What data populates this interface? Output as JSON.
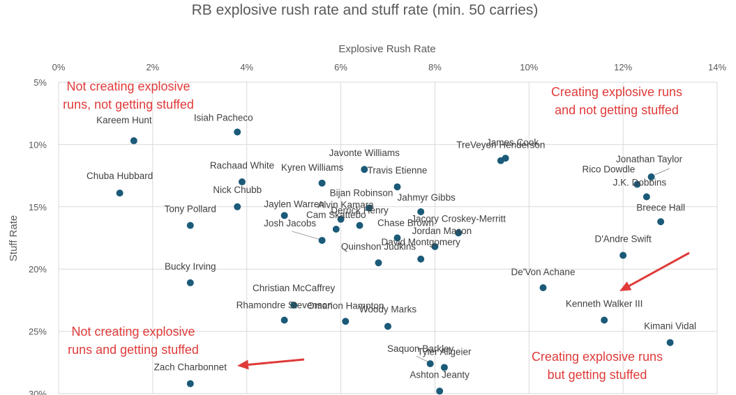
{
  "chart_data": {
    "type": "scatter",
    "title": "RB explosive rush rate and stuff rate (min. 50 carries)",
    "xlabel": "Explosive Rush Rate",
    "ylabel": "Stuff Rate",
    "xlim": [
      0,
      14
    ],
    "ylim": [
      5,
      30
    ],
    "y_inverted": true,
    "x_axis_position": "top",
    "grid": true,
    "x_ticks": [
      "0%",
      "2%",
      "4%",
      "6%",
      "8%",
      "10%",
      "12%",
      "14%"
    ],
    "y_ticks": [
      "5%",
      "10%",
      "15%",
      "20%",
      "25%",
      "30%"
    ],
    "point_color": "#1b5a78",
    "annotation_color": "#e03a3a",
    "points": [
      {
        "name": "Kareem Hunt",
        "x": 1.6,
        "y": 9.7
      },
      {
        "name": "Isiah Pacheco",
        "x": 3.8,
        "y": 9.0
      },
      {
        "name": "Chuba Hubbard",
        "x": 1.3,
        "y": 13.9
      },
      {
        "name": "Rachaad White",
        "x": 3.9,
        "y": 13.0
      },
      {
        "name": "Nick Chubb",
        "x": 3.8,
        "y": 15.0
      },
      {
        "name": "Tony Pollard",
        "x": 2.8,
        "y": 16.5
      },
      {
        "name": "Jaylen Warren",
        "x": 4.8,
        "y": 15.7
      },
      {
        "name": "Kyren Williams",
        "x": 5.6,
        "y": 13.1
      },
      {
        "name": "Javonte Williams",
        "x": 6.5,
        "y": 12.0
      },
      {
        "name": "Travis Etienne",
        "x": 7.2,
        "y": 13.4
      },
      {
        "name": "Bijan Robinson",
        "x": 6.6,
        "y": 15.1
      },
      {
        "name": "Alvin Kamara",
        "x": 6.0,
        "y": 16.0
      },
      {
        "name": "Derrick Henry",
        "x": 6.4,
        "y": 16.5
      },
      {
        "name": "Cam Skattebo",
        "x": 5.9,
        "y": 16.8
      },
      {
        "name": "Chase Brown",
        "x": 7.2,
        "y": 17.5
      },
      {
        "name": "Josh Jacobs",
        "x": 5.6,
        "y": 17.7
      },
      {
        "name": "Jahmyr Gibbs",
        "x": 7.7,
        "y": 15.4
      },
      {
        "name": "Jacory Croskey-Merritt",
        "x": 8.5,
        "y": 17.1
      },
      {
        "name": "Jordan Mason",
        "x": 8.0,
        "y": 18.2
      },
      {
        "name": "David Montgomery",
        "x": 7.7,
        "y": 19.2
      },
      {
        "name": "Quinshon Judkins",
        "x": 6.8,
        "y": 19.5
      },
      {
        "name": "James Cook",
        "x": 9.5,
        "y": 11.1
      },
      {
        "name": "TreVeyon Henderson",
        "x": 9.4,
        "y": 11.3
      },
      {
        "name": "Jonathan Taylor",
        "x": 12.6,
        "y": 12.6
      },
      {
        "name": "Rico Dowdle",
        "x": 12.3,
        "y": 13.2
      },
      {
        "name": "J.K. Dobbins",
        "x": 12.5,
        "y": 14.2
      },
      {
        "name": "Breece Hall",
        "x": 12.8,
        "y": 16.2
      },
      {
        "name": "D'Andre Swift",
        "x": 12.0,
        "y": 18.9
      },
      {
        "name": "Bucky Irving",
        "x": 2.8,
        "y": 21.1
      },
      {
        "name": "Christian McCaffrey",
        "x": 5.0,
        "y": 22.9
      },
      {
        "name": "Rhamondre Stevenson",
        "x": 4.8,
        "y": 24.1
      },
      {
        "name": "Omarion Hampton",
        "x": 6.1,
        "y": 24.2
      },
      {
        "name": "Woody Marks",
        "x": 7.0,
        "y": 24.6
      },
      {
        "name": "De'Von Achane",
        "x": 10.3,
        "y": 21.5
      },
      {
        "name": "Kenneth Walker III",
        "x": 11.6,
        "y": 24.1
      },
      {
        "name": "Kimani Vidal",
        "x": 13.0,
        "y": 25.9
      },
      {
        "name": "Saquon Barkley",
        "x": 7.9,
        "y": 27.6
      },
      {
        "name": "Tyler Allgeier",
        "x": 8.2,
        "y": 27.9
      },
      {
        "name": "Ashton Jeanty",
        "x": 8.1,
        "y": 29.8
      },
      {
        "name": "Zach Charbonnet",
        "x": 2.8,
        "y": 29.2
      }
    ],
    "annotations": [
      {
        "text": [
          "Not creating explosive",
          "runs, not getting stuffed"
        ],
        "position": "top-left"
      },
      {
        "text": [
          "Creating explosive runs",
          "and not getting stuffed"
        ],
        "position": "top-right"
      },
      {
        "text": [
          "Not creating explosive",
          "runs and getting stuffed"
        ],
        "position": "bottom-left"
      },
      {
        "text": [
          "Creating explosive runs",
          "but getting stuffed"
        ],
        "position": "bottom-right"
      }
    ]
  }
}
